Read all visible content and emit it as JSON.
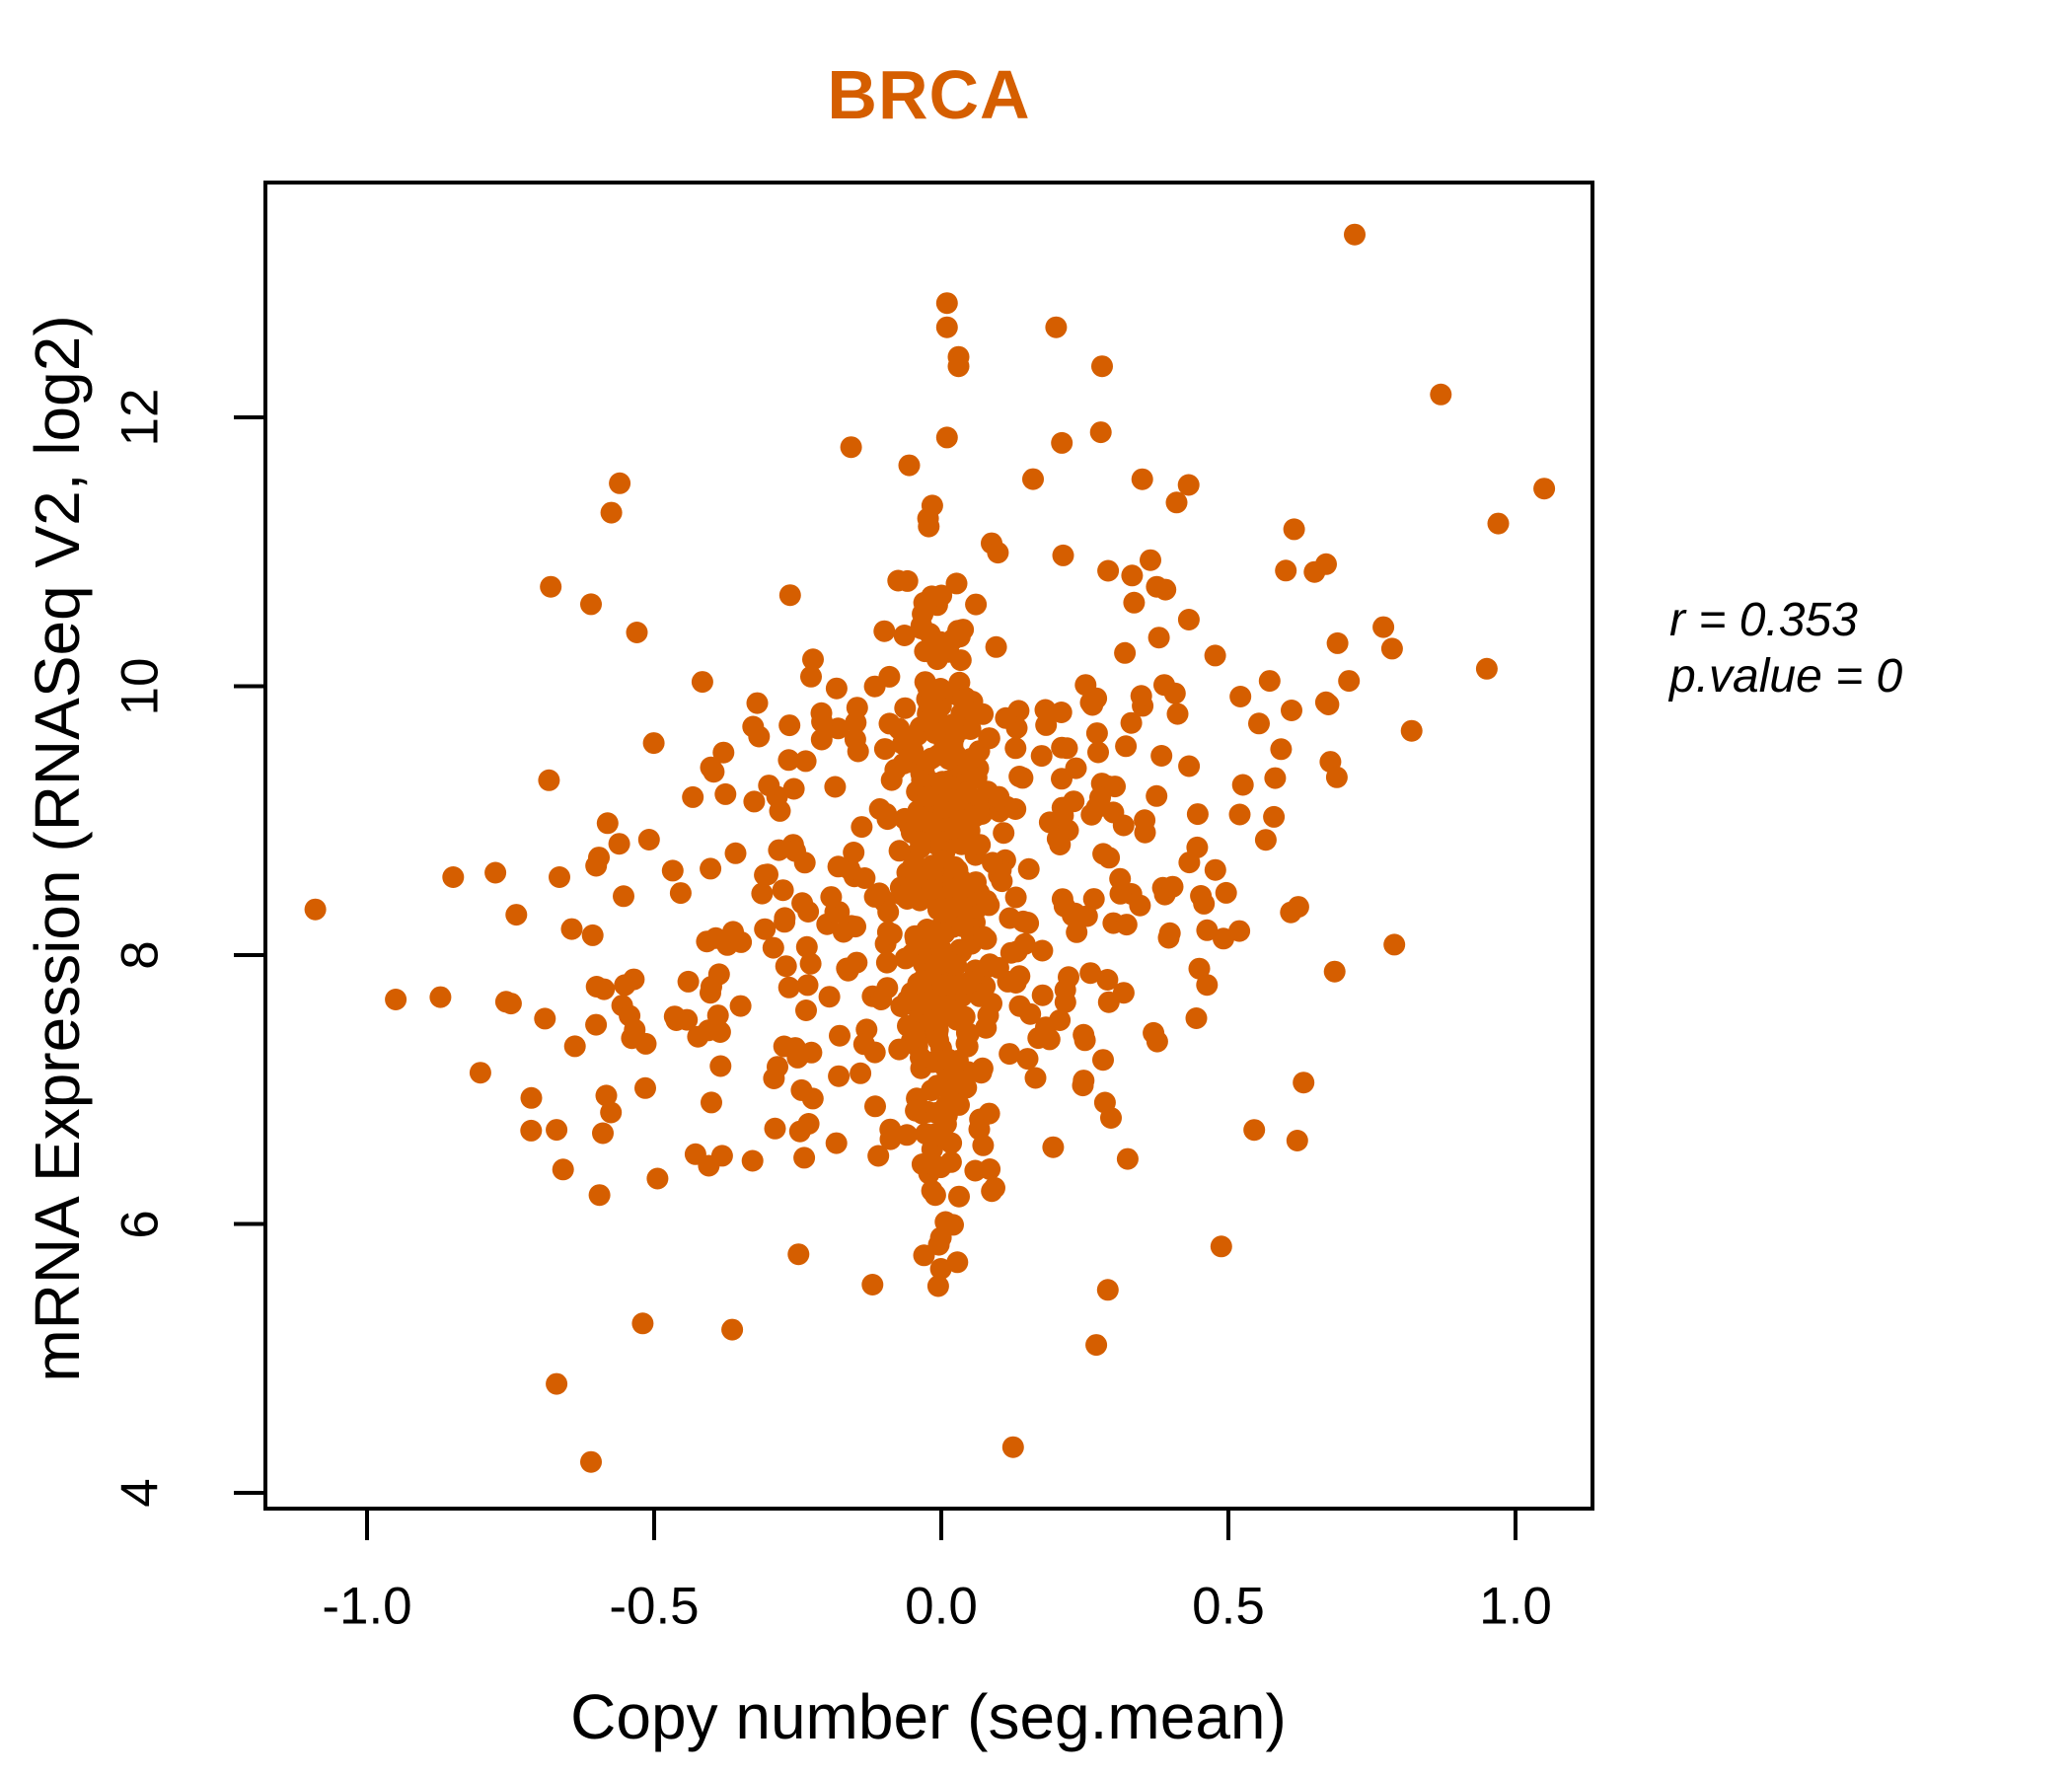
{
  "chart_data": {
    "type": "scatter",
    "title": "BRCA",
    "title_color": "#D55E00",
    "xlabel": "Copy number (seg.mean)",
    "ylabel": "mRNA Expression (RNASeq V2, log2)",
    "x_ticks": [
      "-1.0",
      "-0.5",
      "0.0",
      "0.5",
      "1.0"
    ],
    "x_tick_values": [
      -1.0,
      -0.5,
      0.0,
      0.5,
      1.0
    ],
    "y_ticks": [
      "4",
      "6",
      "8",
      "10",
      "12"
    ],
    "y_tick_values": [
      4,
      6,
      8,
      10,
      12
    ],
    "xlim": [
      -1.18,
      1.13
    ],
    "ylim": [
      3.87,
      13.75
    ],
    "grid": false,
    "legend": null,
    "annotation": {
      "line1": "r = 0.353",
      "line2": "p.value = 0"
    },
    "correlation_r": 0.353,
    "p_value": 0,
    "marker": {
      "shape": "circle",
      "color": "#D55E00",
      "radius_px": 11
    },
    "n_points_approx": 755,
    "outlier_points": [
      [
        -1.09,
        8.34
      ],
      [
        -0.95,
        7.67
      ],
      [
        -0.85,
        8.58
      ],
      [
        -0.665,
        8.58
      ],
      [
        -0.74,
        8.3
      ],
      [
        -0.68,
        10.74
      ],
      [
        -0.61,
        10.61
      ],
      [
        -0.53,
        10.4
      ],
      [
        -0.56,
        11.51
      ],
      [
        -0.67,
        6.7
      ],
      [
        -0.61,
        4.23
      ],
      [
        -0.67,
        4.81
      ],
      [
        -0.52,
        5.26
      ],
      [
        0.125,
        4.34
      ],
      [
        0.27,
        5.1
      ],
      [
        0.29,
        5.51
      ],
      [
        0.72,
        13.36
      ],
      [
        0.01,
        12.85
      ],
      [
        0.01,
        12.67
      ],
      [
        0.2,
        12.67
      ],
      [
        0.03,
        12.45
      ],
      [
        0.03,
        12.38
      ],
      [
        0.28,
        12.38
      ],
      [
        0.87,
        12.17
      ],
      [
        0.01,
        11.85
      ],
      [
        0.21,
        11.81
      ],
      [
        0.35,
        11.54
      ],
      [
        1.05,
        11.47
      ],
      [
        0.97,
        11.21
      ],
      [
        0.95,
        10.13
      ],
      [
        0.6,
        10.86
      ],
      [
        0.65,
        10.85
      ],
      [
        0.77,
        10.44
      ],
      [
        0.69,
        10.32
      ],
      [
        0.785,
        10.28
      ],
      [
        0.71,
        10.04
      ],
      [
        0.67,
        9.88
      ],
      [
        0.61,
        9.82
      ],
      [
        0.62,
        6.62
      ]
    ],
    "cluster_model": {
      "comment": "dense unreadable core approximated by seeded gaussian groups; combined with outlier_points reproduces the depicted cloud",
      "seed": 20,
      "groups": [
        {
          "name": "zero-copy-stripe",
          "n": 300,
          "x_mean": 0.005,
          "x_sd": 0.038,
          "slope": 0,
          "y_mean": 8.35,
          "y_sd": 1.28,
          "x_clip": [
            -0.13,
            0.14
          ],
          "y_clip": [
            5.5,
            12.2
          ]
        },
        {
          "name": "spread-cloud",
          "n": 416,
          "x_mean": -0.02,
          "x_sd": 0.33,
          "slope": 1.3,
          "y_mean": 8.42,
          "y_sd": 1.12,
          "x_clip": [
            -1.05,
            0.98
          ],
          "y_clip": [
            4.55,
            12.3
          ]
        }
      ]
    }
  }
}
